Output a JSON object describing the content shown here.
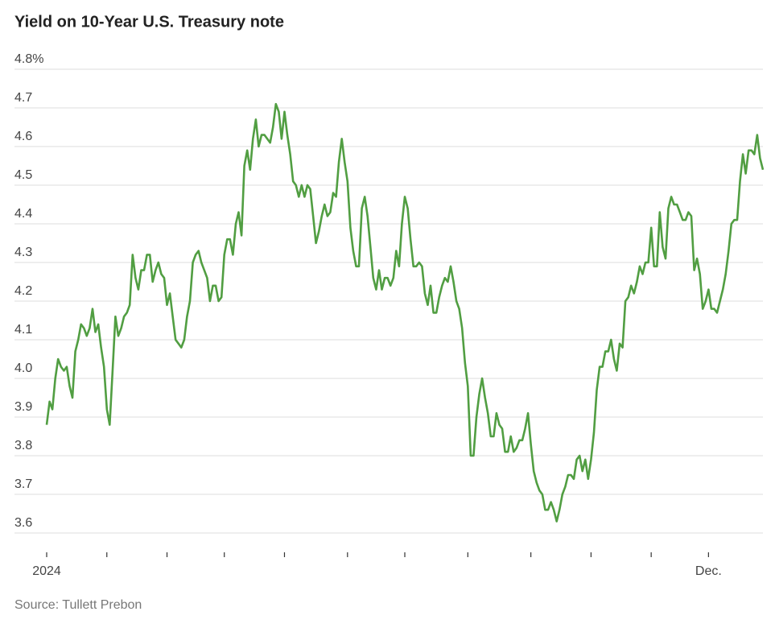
{
  "chart_data": {
    "type": "line",
    "title": "Yield on 10-Year U.S. Treasury note",
    "source": "Source: Tullett Prebon",
    "color": "#519e42",
    "grid": true,
    "categories": [
      null,
      null,
      null,
      null,
      null,
      null,
      null,
      null,
      null,
      null,
      null,
      null,
      null,
      null,
      null,
      null,
      null,
      null,
      null,
      null,
      null,
      null,
      null,
      null,
      null,
      null,
      null,
      null,
      null,
      null,
      null,
      null,
      null,
      null,
      null,
      null,
      null,
      null,
      null,
      null,
      null,
      null,
      null,
      null,
      null,
      null,
      null,
      null,
      null,
      null,
      null,
      null,
      null,
      null,
      null,
      null,
      null,
      null,
      null,
      null,
      null,
      null,
      null,
      null,
      null,
      null,
      null,
      null,
      null,
      null,
      null,
      null,
      null,
      null,
      null,
      null,
      null,
      null,
      null,
      null,
      null,
      null,
      null,
      null,
      null,
      null,
      null,
      null,
      null,
      null,
      null,
      null,
      null,
      null,
      null,
      null,
      null,
      null,
      null,
      null,
      null,
      null,
      null,
      null,
      null,
      null,
      null,
      null,
      null,
      null,
      null,
      null,
      null,
      null,
      null,
      null,
      null,
      null,
      null,
      null,
      null,
      null,
      null,
      null,
      null,
      null,
      null,
      null,
      null,
      null,
      null,
      null,
      null,
      null,
      null,
      null,
      null,
      null,
      null,
      null,
      null,
      null,
      null,
      null,
      null,
      null,
      null,
      null,
      null,
      null,
      null,
      null,
      null,
      null,
      null,
      null,
      null,
      null,
      null,
      null,
      null,
      null,
      null,
      null,
      null,
      null,
      null,
      null,
      null,
      null,
      null,
      null,
      null,
      null,
      null,
      null,
      null,
      null,
      null,
      null,
      null,
      null,
      null,
      null,
      null,
      null,
      null,
      null,
      null,
      null,
      null,
      null,
      null,
      null,
      null,
      null,
      null,
      null,
      null,
      null,
      null,
      null,
      null,
      null,
      null,
      null,
      null,
      null,
      null,
      null,
      null,
      null,
      null,
      null,
      null,
      null,
      null,
      null,
      null,
      null,
      null,
      null,
      null,
      null,
      null,
      null,
      null,
      null,
      null,
      null,
      null,
      null,
      null,
      null,
      null,
      null,
      null,
      null,
      null,
      null,
      null,
      null,
      null,
      null,
      null,
      null,
      null,
      null,
      null,
      null,
      null
    ],
    "values": [
      3.88,
      3.94,
      3.92,
      4.0,
      4.05,
      4.03,
      4.02,
      4.03,
      3.98,
      3.95,
      4.07,
      4.1,
      4.14,
      4.13,
      4.11,
      4.13,
      4.18,
      4.12,
      4.14,
      4.08,
      4.03,
      3.92,
      3.88,
      4.02,
      4.16,
      4.11,
      4.13,
      4.16,
      4.17,
      4.19,
      4.32,
      4.26,
      4.23,
      4.28,
      4.28,
      4.32,
      4.32,
      4.25,
      4.28,
      4.3,
      4.27,
      4.26,
      4.19,
      4.22,
      4.16,
      4.1,
      4.09,
      4.08,
      4.1,
      4.16,
      4.2,
      4.3,
      4.32,
      4.33,
      4.3,
      4.28,
      4.26,
      4.2,
      4.24,
      4.24,
      4.2,
      4.21,
      4.32,
      4.36,
      4.36,
      4.32,
      4.4,
      4.43,
      4.37,
      4.55,
      4.59,
      4.54,
      4.62,
      4.67,
      4.6,
      4.63,
      4.63,
      4.62,
      4.61,
      4.65,
      4.71,
      4.69,
      4.62,
      4.69,
      4.63,
      4.58,
      4.51,
      4.5,
      4.47,
      4.5,
      4.47,
      4.5,
      4.49,
      4.42,
      4.35,
      4.38,
      4.42,
      4.45,
      4.42,
      4.43,
      4.48,
      4.47,
      4.56,
      4.62,
      4.56,
      4.51,
      4.39,
      4.33,
      4.29,
      4.29,
      4.44,
      4.47,
      4.42,
      4.34,
      4.26,
      4.23,
      4.28,
      4.23,
      4.26,
      4.26,
      4.24,
      4.26,
      4.33,
      4.29,
      4.4,
      4.47,
      4.44,
      4.36,
      4.29,
      4.29,
      4.3,
      4.29,
      4.22,
      4.19,
      4.24,
      4.17,
      4.17,
      4.21,
      4.24,
      4.26,
      4.25,
      4.29,
      4.25,
      4.2,
      4.18,
      4.13,
      4.04,
      3.98,
      3.8,
      3.8,
      3.9,
      3.96,
      4.0,
      3.95,
      3.91,
      3.85,
      3.85,
      3.91,
      3.88,
      3.87,
      3.81,
      3.81,
      3.85,
      3.81,
      3.82,
      3.84,
      3.84,
      3.87,
      3.91,
      3.83,
      3.76,
      3.73,
      3.71,
      3.7,
      3.66,
      3.66,
      3.68,
      3.66,
      3.63,
      3.66,
      3.7,
      3.72,
      3.75,
      3.75,
      3.74,
      3.79,
      3.8,
      3.76,
      3.79,
      3.74,
      3.79,
      3.86,
      3.97,
      4.03,
      4.03,
      4.07,
      4.07,
      4.1,
      4.05,
      4.02,
      4.09,
      4.08,
      4.2,
      4.21,
      4.24,
      4.22,
      4.25,
      4.29,
      4.27,
      4.3,
      4.3,
      4.39,
      4.29,
      4.29,
      4.43,
      4.34,
      4.31,
      4.44,
      4.47,
      4.45,
      4.45,
      4.43,
      4.41,
      4.41,
      4.43,
      4.42,
      4.28,
      4.31,
      4.27,
      4.18,
      4.2,
      4.23,
      4.18,
      4.18,
      4.17,
      4.2,
      4.23,
      4.27,
      4.33,
      4.4,
      4.41,
      4.41,
      4.51,
      4.58,
      4.53,
      4.59,
      4.59,
      4.58,
      4.63,
      4.57,
      4.54
    ],
    "xticks": [
      {
        "value": 0,
        "label": "2024"
      },
      21,
      42,
      62,
      83,
      105,
      125,
      147,
      169,
      190,
      211,
      {
        "value": 231,
        "label": "Dec."
      }
    ],
    "ylim": [
      3.55,
      4.82
    ],
    "yticks": [
      {
        "value": 4.8,
        "label": "4.8%"
      },
      4.7,
      4.6,
      4.5,
      4.4,
      4.3,
      4.2,
      4.1,
      {
        "value": 4,
        "label": "4.0"
      },
      3.9,
      3.8,
      3.7,
      3.6
    ]
  }
}
